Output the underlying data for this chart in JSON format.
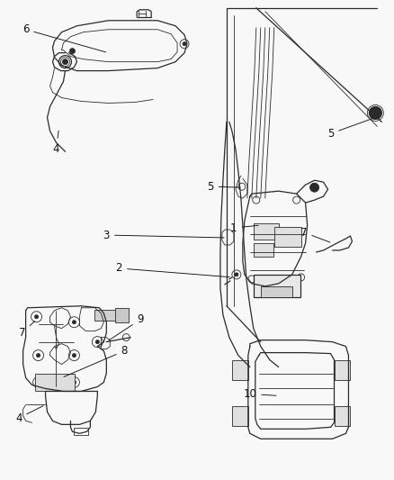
{
  "bg_color": "#f8f8f8",
  "line_color": "#2a2a2a",
  "figure_width": 4.38,
  "figure_height": 5.33,
  "dpi": 100,
  "labels": {
    "6": [
      0.055,
      0.935,
      0.175,
      0.885
    ],
    "4a": [
      0.145,
      0.695,
      0.195,
      0.74
    ],
    "3": [
      0.27,
      0.575,
      0.34,
      0.61
    ],
    "2": [
      0.3,
      0.505,
      0.365,
      0.535
    ],
    "1": [
      0.595,
      0.575,
      0.535,
      0.605
    ],
    "5a": [
      0.535,
      0.645,
      0.495,
      0.625
    ],
    "5b": [
      0.84,
      0.285,
      0.875,
      0.755
    ],
    "7a": [
      0.77,
      0.545,
      0.735,
      0.535
    ],
    "7b": [
      0.055,
      0.3,
      0.085,
      0.34
    ],
    "9": [
      0.355,
      0.245,
      0.285,
      0.265
    ],
    "8": [
      0.315,
      0.195,
      0.165,
      0.21
    ],
    "4b": [
      0.045,
      0.135,
      0.09,
      0.085
    ],
    "10": [
      0.635,
      0.13,
      0.68,
      0.155
    ]
  }
}
